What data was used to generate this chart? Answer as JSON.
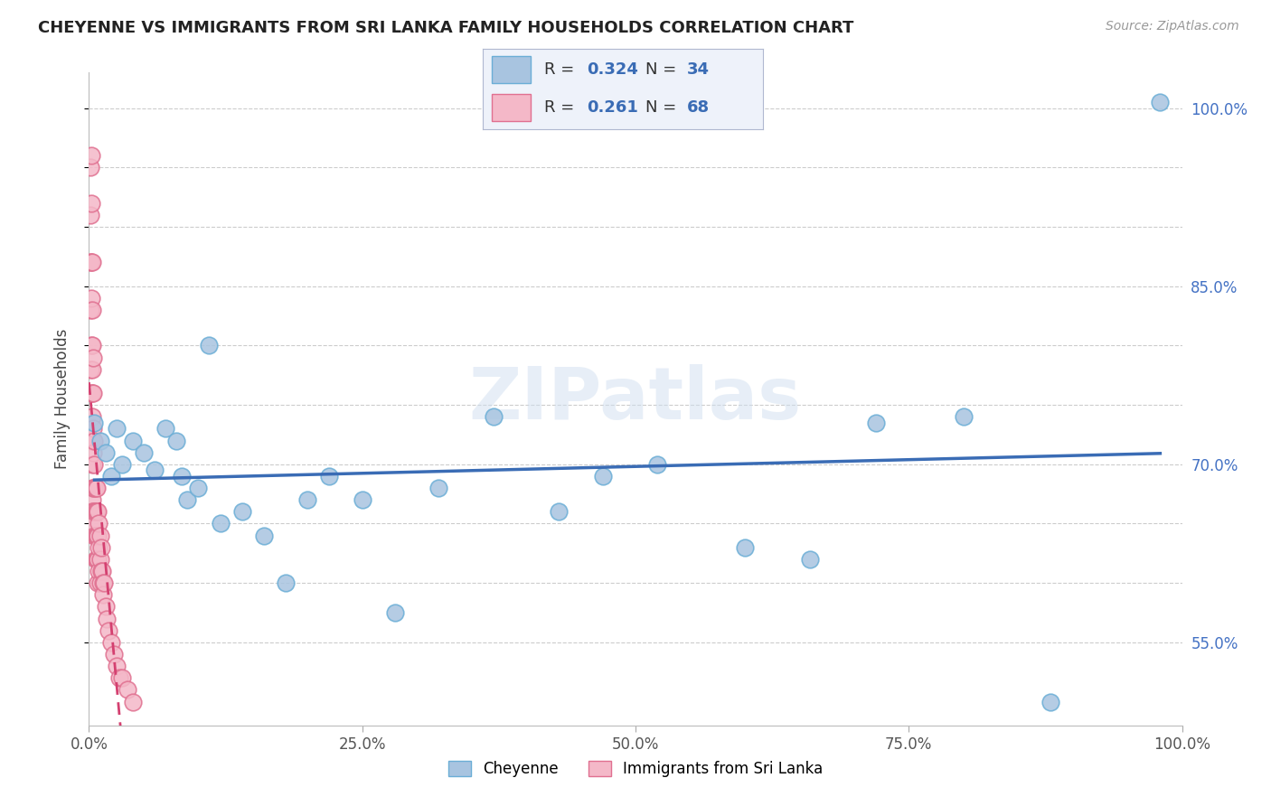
{
  "title": "CHEYENNE VS IMMIGRANTS FROM SRI LANKA FAMILY HOUSEHOLDS CORRELATION CHART",
  "source": "Source: ZipAtlas.com",
  "ylabel": "Family Households",
  "xlim": [
    0.0,
    1.0
  ],
  "ylim": [
    0.48,
    1.03
  ],
  "yticks": [
    0.55,
    0.6,
    0.65,
    0.7,
    0.75,
    0.8,
    0.85,
    0.9,
    0.95,
    1.0
  ],
  "right_ytick_labels": [
    "55.0%",
    "70.0%",
    "85.0%",
    "100.0%"
  ],
  "right_yticks": [
    0.55,
    0.7,
    0.85,
    1.0
  ],
  "watermark": "ZIPatlas",
  "legend_blue_r": "0.324",
  "legend_blue_n": "34",
  "legend_pink_r": "0.261",
  "legend_pink_n": "68",
  "cheyenne_color": "#a8c4e0",
  "cheyenne_edge": "#6baed6",
  "sri_lanka_color": "#f4b8c8",
  "sri_lanka_edge": "#e07090",
  "blue_line_color": "#3a6cb5",
  "pink_line_color": "#d44070",
  "grid_color": "#cccccc",
  "cheyenne_label": "Cheyenne",
  "sri_lanka_label": "Immigrants from Sri Lanka",
  "cheyenne_x": [
    0.005,
    0.01,
    0.015,
    0.02,
    0.025,
    0.03,
    0.04,
    0.05,
    0.06,
    0.07,
    0.08,
    0.085,
    0.09,
    0.1,
    0.11,
    0.12,
    0.14,
    0.16,
    0.18,
    0.2,
    0.22,
    0.25,
    0.28,
    0.32,
    0.37,
    0.43,
    0.47,
    0.52,
    0.6,
    0.66,
    0.72,
    0.8,
    0.88,
    0.98
  ],
  "cheyenne_y": [
    0.735,
    0.72,
    0.71,
    0.69,
    0.73,
    0.7,
    0.72,
    0.71,
    0.695,
    0.73,
    0.72,
    0.69,
    0.67,
    0.68,
    0.8,
    0.65,
    0.66,
    0.64,
    0.6,
    0.67,
    0.69,
    0.67,
    0.575,
    0.68,
    0.74,
    0.66,
    0.69,
    0.7,
    0.63,
    0.62,
    0.735,
    0.74,
    0.5,
    1.005
  ],
  "sri_lanka_x": [
    0.001,
    0.001,
    0.001,
    0.001,
    0.001,
    0.002,
    0.002,
    0.002,
    0.002,
    0.002,
    0.002,
    0.003,
    0.003,
    0.003,
    0.003,
    0.003,
    0.003,
    0.003,
    0.003,
    0.003,
    0.003,
    0.003,
    0.004,
    0.004,
    0.004,
    0.004,
    0.004,
    0.004,
    0.004,
    0.005,
    0.005,
    0.005,
    0.005,
    0.005,
    0.006,
    0.006,
    0.006,
    0.006,
    0.007,
    0.007,
    0.007,
    0.007,
    0.008,
    0.008,
    0.008,
    0.008,
    0.009,
    0.009,
    0.009,
    0.01,
    0.01,
    0.01,
    0.011,
    0.011,
    0.012,
    0.013,
    0.013,
    0.014,
    0.015,
    0.016,
    0.018,
    0.02,
    0.023,
    0.025,
    0.028,
    0.03,
    0.035,
    0.04
  ],
  "sri_lanka_y": [
    0.95,
    0.91,
    0.87,
    0.83,
    0.78,
    0.96,
    0.92,
    0.87,
    0.84,
    0.8,
    0.76,
    0.87,
    0.83,
    0.8,
    0.78,
    0.76,
    0.74,
    0.72,
    0.7,
    0.68,
    0.67,
    0.66,
    0.79,
    0.76,
    0.73,
    0.71,
    0.68,
    0.66,
    0.65,
    0.72,
    0.7,
    0.68,
    0.66,
    0.64,
    0.68,
    0.66,
    0.64,
    0.62,
    0.68,
    0.66,
    0.64,
    0.62,
    0.66,
    0.64,
    0.62,
    0.6,
    0.65,
    0.63,
    0.61,
    0.64,
    0.62,
    0.6,
    0.63,
    0.61,
    0.61,
    0.6,
    0.59,
    0.6,
    0.58,
    0.57,
    0.56,
    0.55,
    0.54,
    0.53,
    0.52,
    0.52,
    0.51,
    0.5
  ]
}
